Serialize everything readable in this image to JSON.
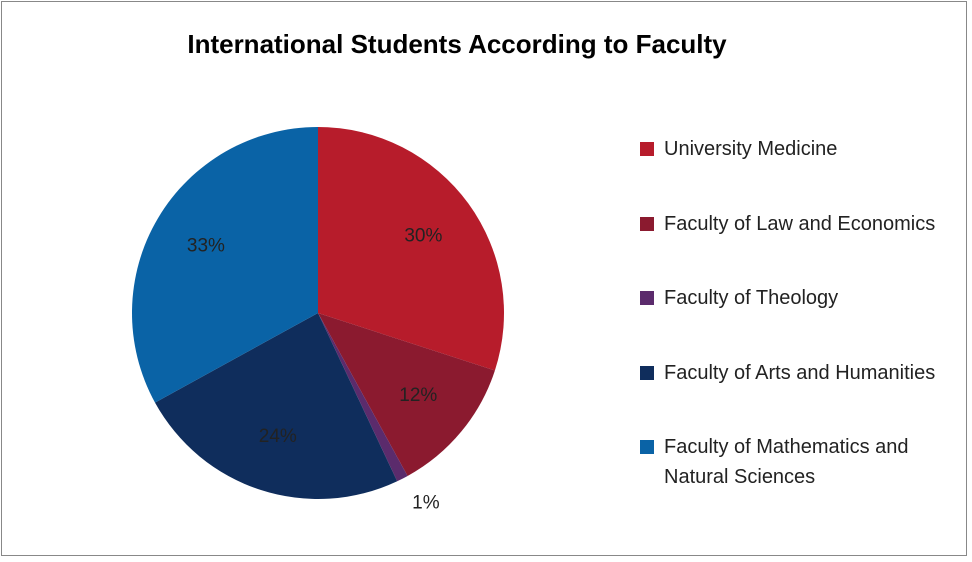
{
  "chart_data": {
    "type": "pie",
    "title": "International Students According to Faculty",
    "categories": [
      "University Medicine",
      "Faculty of Law and Economics",
      "Faculty of Theology",
      "Faculty of Arts and Humanities",
      "Faculty of Mathematics and Natural Sciences"
    ],
    "values": [
      30,
      12,
      1,
      24,
      33
    ],
    "value_labels": [
      "30%",
      "12%",
      "1%",
      "24%",
      "33%"
    ],
    "colors": [
      "#b71c2b",
      "#8b1a2f",
      "#5b2b6c",
      "#0f2d5c",
      "#0a63a6"
    ],
    "legend": "right"
  }
}
